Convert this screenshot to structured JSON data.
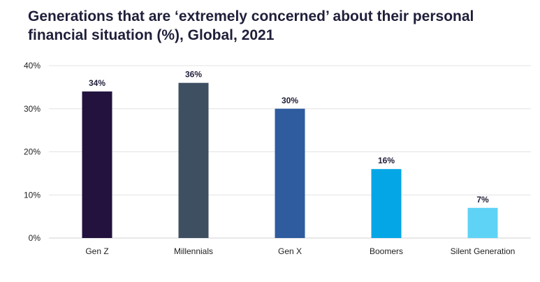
{
  "chart_data": {
    "type": "bar",
    "title": "Generations that are ‘extremely concerned’ about their personal financial situation (%), Global, 2021",
    "categories": [
      "Gen Z",
      "Millennials",
      "Gen X",
      "Boomers",
      "Silent Generation"
    ],
    "values": [
      34,
      36,
      30,
      16,
      7
    ],
    "value_labels": [
      "34%",
      "36%",
      "30%",
      "16%",
      "7%"
    ],
    "bar_colors": [
      "#22123d",
      "#3f4f62",
      "#2f5c9f",
      "#05a6e6",
      "#5fd3f5"
    ],
    "y_ticks": [
      "0%",
      "10%",
      "20%",
      "30%",
      "40%"
    ],
    "ylim": [
      0,
      40
    ],
    "grid": true,
    "legend": "none"
  }
}
